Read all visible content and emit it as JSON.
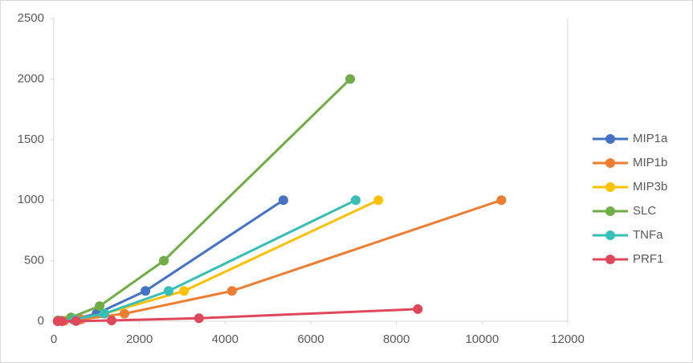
{
  "chart_data": {
    "type": "scatter-line",
    "xlim": [
      0,
      12000
    ],
    "xticks": [
      0,
      2000,
      4000,
      6000,
      8000,
      10000,
      12000
    ],
    "ylim": [
      0,
      2500
    ],
    "yticks": [
      0,
      500,
      1000,
      1500,
      2000,
      2500
    ],
    "legend": "right",
    "series": [
      {
        "name": "MIP1a",
        "color": "#4472c4",
        "x": [
          5360,
          2140,
          1000,
          450,
          160
        ],
        "values": [
          1000,
          250,
          62.5,
          15.6,
          3.9
        ]
      },
      {
        "name": "MIP1b",
        "color": "#ed7d31",
        "x": [
          10450,
          4160,
          1650,
          640,
          250
        ],
        "values": [
          1000,
          250,
          62.5,
          15.6,
          3.9
        ]
      },
      {
        "name": "MIP3b",
        "color": "#ffc000",
        "x": [
          7580,
          3040,
          1180,
          480,
          190
        ],
        "values": [
          1000,
          250,
          62.5,
          15.6,
          3.9
        ]
      },
      {
        "name": "SLC",
        "color": "#70ad47",
        "x": [
          6920,
          2570,
          1070,
          400,
          100
        ],
        "values": [
          2000,
          500,
          125,
          31.3,
          7.8
        ]
      },
      {
        "name": "TNFa",
        "color": "#36bfb6",
        "x": [
          7050,
          2680,
          1180,
          480,
          180
        ],
        "values": [
          1000,
          250,
          62.5,
          15.6,
          3.9
        ]
      },
      {
        "name": "PRF1",
        "color": "#e0475b",
        "x": [
          8500,
          3390,
          1350,
          520,
          190,
          90
        ],
        "values": [
          100,
          25,
          6.25,
          1.6,
          0.4,
          0.1
        ]
      }
    ]
  }
}
